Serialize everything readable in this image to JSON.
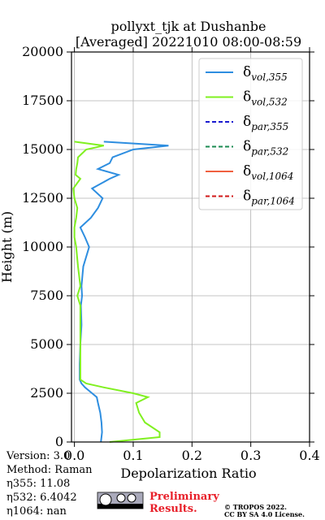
{
  "chart_data": {
    "type": "line",
    "title": [
      "pollyxt_tjk at Dushanbe",
      "[Averaged] 20221010 08:00-08:59"
    ],
    "x_label": "Depolarization Ratio",
    "y_label": "Height (m)",
    "xlim": [
      -0.005,
      0.4
    ],
    "xticks": [
      {
        "value": 0,
        "label": "0.0"
      },
      0.1,
      0.2,
      0.3,
      0.4
    ],
    "ylim": [
      0,
      20000
    ],
    "yticks": [
      0,
      2500,
      5000,
      7500,
      10000,
      12500,
      15000,
      17500,
      20000
    ],
    "grid": true,
    "legend": "upper right",
    "heights": [
      0,
      250,
      500,
      1000,
      1500,
      2000,
      2300,
      2500,
      2800,
      3000,
      3200,
      4000,
      5000,
      6000,
      7000,
      7500,
      8000,
      9000,
      10000,
      10500,
      11000,
      11500,
      12000,
      12500,
      13000,
      13500,
      13700,
      14000,
      14300,
      14600,
      15000,
      15200,
      15400
    ],
    "series": [
      {
        "name": "δvol,355",
        "color": "#2e8ee0",
        "dash": false,
        "values": [
          0.045,
          0.046,
          0.047,
          0.046,
          0.044,
          0.04,
          0.038,
          0.03,
          0.018,
          0.012,
          0.009,
          0.009,
          0.01,
          0.012,
          0.011,
          0.013,
          0.012,
          0.015,
          0.025,
          0.018,
          0.01,
          0.028,
          0.04,
          0.048,
          0.03,
          0.06,
          0.075,
          0.04,
          0.06,
          0.065,
          0.1,
          0.16,
          0.05
        ]
      },
      {
        "name": "δvol,532",
        "color": "#80f020",
        "dash": false,
        "values": [
          0.06,
          0.145,
          0.145,
          0.12,
          0.11,
          0.105,
          0.125,
          0.1,
          0.05,
          0.02,
          0.01,
          0.01,
          0.01,
          0.01,
          0.01,
          0.005,
          0.01,
          0.006,
          0.003,
          0.0,
          0.0,
          0.003,
          0.005,
          0.0,
          -0.002,
          0.01,
          0.002,
          0.003,
          0.005,
          0.006,
          0.02,
          0.05,
          0.0
        ]
      },
      {
        "name": "δpar,355",
        "color": "#1a1ad0",
        "dash": true,
        "values": [
          null,
          null,
          null,
          null,
          null,
          null,
          null,
          null,
          null,
          null,
          null,
          null,
          null,
          null,
          null,
          null,
          null,
          null,
          null,
          null,
          null,
          null,
          null,
          null,
          null,
          null,
          null,
          null,
          null,
          null,
          null,
          null,
          null
        ]
      },
      {
        "name": "δpar,532",
        "color": "#1a8a50",
        "dash": true,
        "values": [
          null,
          null,
          null,
          null,
          null,
          null,
          null,
          null,
          null,
          null,
          null,
          null,
          null,
          null,
          null,
          null,
          null,
          null,
          null,
          null,
          null,
          null,
          null,
          null,
          null,
          null,
          null,
          null,
          null,
          null,
          null,
          null,
          null
        ]
      },
      {
        "name": "δvol,1064",
        "color": "#f06040",
        "dash": false,
        "values": [
          null,
          null,
          null,
          null,
          null,
          null,
          null,
          null,
          null,
          null,
          null,
          null,
          null,
          null,
          null,
          null,
          null,
          null,
          null,
          null,
          null,
          null,
          null,
          null,
          null,
          null,
          null,
          null,
          null,
          null,
          null,
          null,
          null
        ]
      },
      {
        "name": "δpar,1064",
        "color": "#d01818",
        "dash": true,
        "values": [
          null,
          null,
          null,
          null,
          null,
          null,
          null,
          null,
          null,
          null,
          null,
          null,
          null,
          null,
          null,
          null,
          null,
          null,
          null,
          null,
          null,
          null,
          null,
          null,
          null,
          null,
          null,
          null,
          null,
          null,
          null,
          null,
          null
        ]
      }
    ],
    "annotations": [
      "Version: 3.0",
      "Method: Raman",
      "η355:  11.08",
      "η532: 6.4042",
      "η1064:    nan"
    ],
    "footer": {
      "preliminary": [
        "Preliminary",
        "Results."
      ],
      "copyright": [
        "© TROPOS 2022.",
        "CC BY SA 4.0 License."
      ]
    }
  }
}
